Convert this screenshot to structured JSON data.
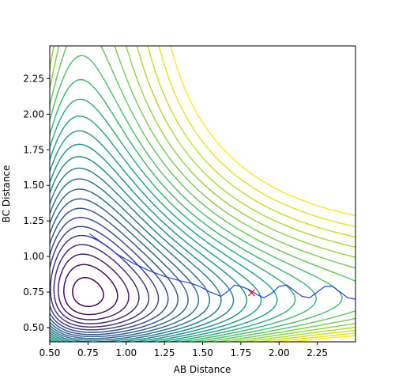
{
  "chart_data": {
    "type": "contour",
    "title": "",
    "xlabel": "AB Distance",
    "ylabel": "BC Distance",
    "xlim": [
      0.5,
      2.5
    ],
    "ylim": [
      0.4,
      2.48
    ],
    "xticks": [
      "0.50",
      "0.75",
      "1.00",
      "1.25",
      "1.50",
      "1.75",
      "2.00",
      "2.25"
    ],
    "yticks": [
      "0.50",
      "0.75",
      "1.00",
      "1.25",
      "1.50",
      "1.75",
      "2.00",
      "2.25"
    ],
    "colormap": "viridis",
    "grid": false,
    "legend": "none",
    "contour_levels": 26,
    "trajectory": {
      "color": "#1f3fe0",
      "points": [
        [
          0.76,
          1.16
        ],
        [
          0.85,
          1.09
        ],
        [
          0.95,
          1.01
        ],
        [
          1.05,
          0.95
        ],
        [
          1.15,
          0.9
        ],
        [
          1.25,
          0.86
        ],
        [
          1.35,
          0.83
        ],
        [
          1.43,
          0.81
        ],
        [
          1.48,
          0.79
        ],
        [
          1.55,
          0.75
        ],
        [
          1.62,
          0.72
        ],
        [
          1.67,
          0.76
        ],
        [
          1.71,
          0.8
        ],
        [
          1.75,
          0.79
        ],
        [
          1.8,
          0.77
        ],
        [
          1.86,
          0.73
        ],
        [
          1.9,
          0.71
        ],
        [
          1.95,
          0.74
        ],
        [
          2.0,
          0.79
        ],
        [
          2.05,
          0.8
        ],
        [
          2.1,
          0.76
        ],
        [
          2.15,
          0.72
        ],
        [
          2.2,
          0.71
        ],
        [
          2.25,
          0.75
        ],
        [
          2.3,
          0.79
        ],
        [
          2.35,
          0.79
        ],
        [
          2.4,
          0.75
        ],
        [
          2.45,
          0.71
        ],
        [
          2.5,
          0.7
        ]
      ]
    },
    "marker": {
      "symbol": "x",
      "color": "#e8001a",
      "x": 1.82,
      "y": 0.745
    }
  }
}
